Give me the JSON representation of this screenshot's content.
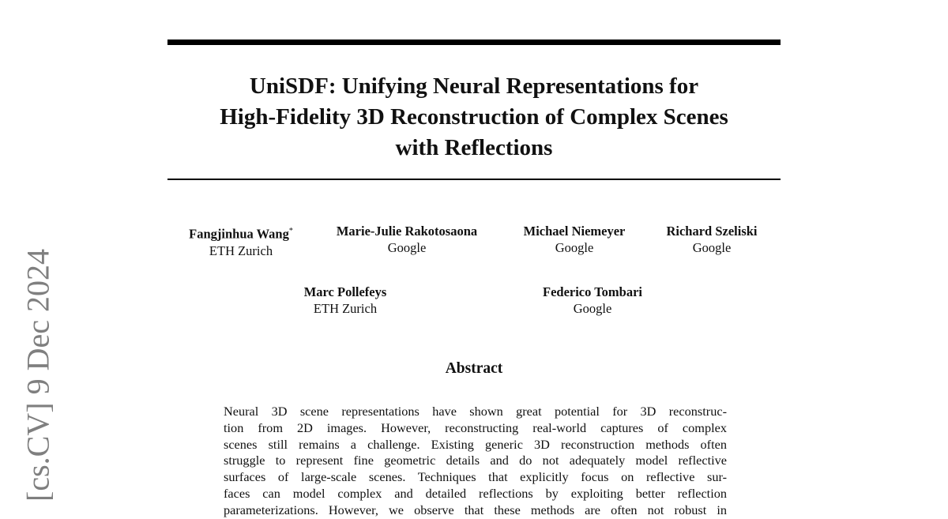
{
  "sidebar_stamp": "[cs.CV]  9 Dec 2024",
  "title_lines": [
    "UniSDF: Unifying Neural Representations for",
    "High-Fidelity 3D Reconstruction of Complex Scenes",
    "with Reflections"
  ],
  "authors": [
    {
      "name": "Fangjinhua Wang",
      "mark": "*",
      "affiliation": "ETH Zurich"
    },
    {
      "name": "Marie-Julie Rakotosaona",
      "affiliation": "Google"
    },
    {
      "name": "Michael Niemeyer",
      "affiliation": "Google"
    },
    {
      "name": "Richard Szeliski",
      "affiliation": "Google"
    },
    {
      "name": "Marc Pollefeys",
      "affiliation": "ETH Zurich"
    },
    {
      "name": "Federico Tombari",
      "affiliation": "Google"
    }
  ],
  "abstract": {
    "heading": "Abstract",
    "lines": [
      "Neural 3D scene representations have shown great potential for 3D reconstruc-",
      "tion from 2D images. However, reconstructing real-world captures of complex",
      "scenes still remains a challenge. Existing generic 3D reconstruction methods often",
      "struggle to represent fine geometric details and do not adequately model reflective",
      "surfaces of large-scale scenes. Techniques that explicitly focus on reflective sur-",
      "faces can model complex and detailed reflections by exploiting better reflection",
      "parameterizations. However, we observe that these methods are often not robust in"
    ]
  }
}
